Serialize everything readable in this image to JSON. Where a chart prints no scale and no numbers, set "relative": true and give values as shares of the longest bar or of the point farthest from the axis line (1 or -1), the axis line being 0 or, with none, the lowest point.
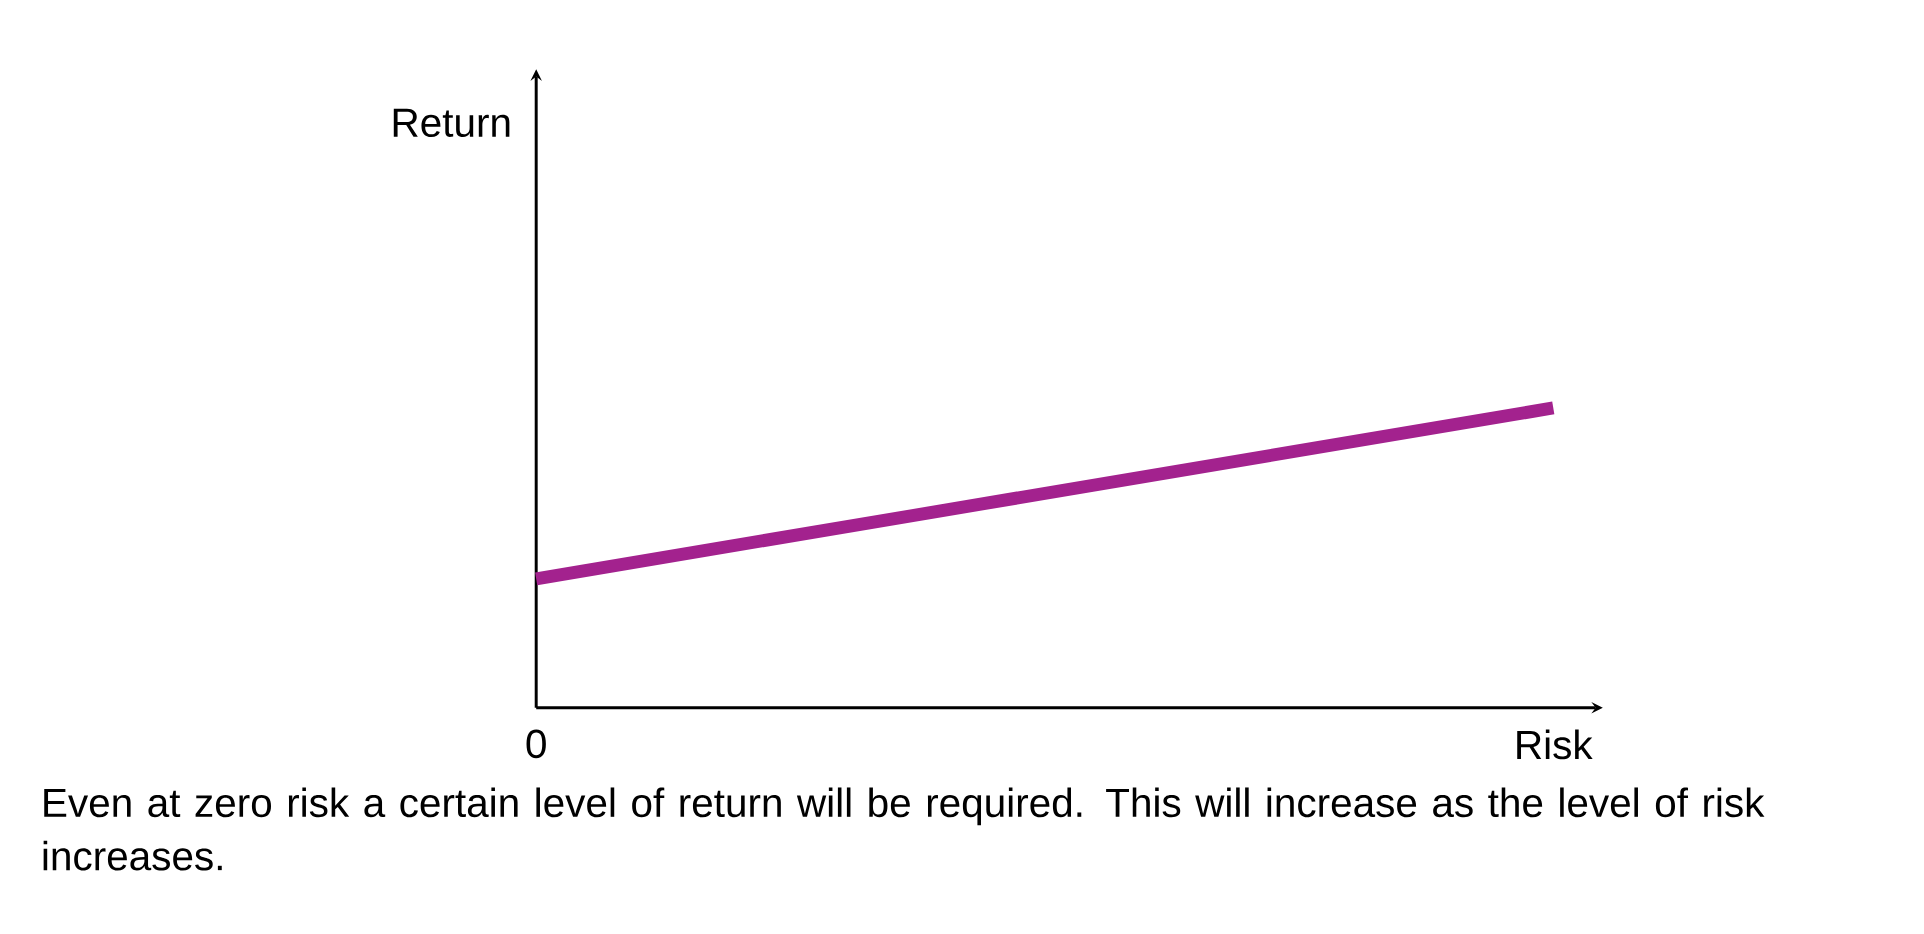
{
  "chart_data": {
    "type": "line",
    "relative": true,
    "categories": [
      "0",
      "Risk"
    ],
    "series": [
      {
        "color": "#a3228e",
        "values": [
          0.43,
          1
        ]
      }
    ],
    "annotations": [
      "Return",
      "Even at zero risk a certain level of return will be required. This will increase as the level of risk increases."
    ]
  }
}
